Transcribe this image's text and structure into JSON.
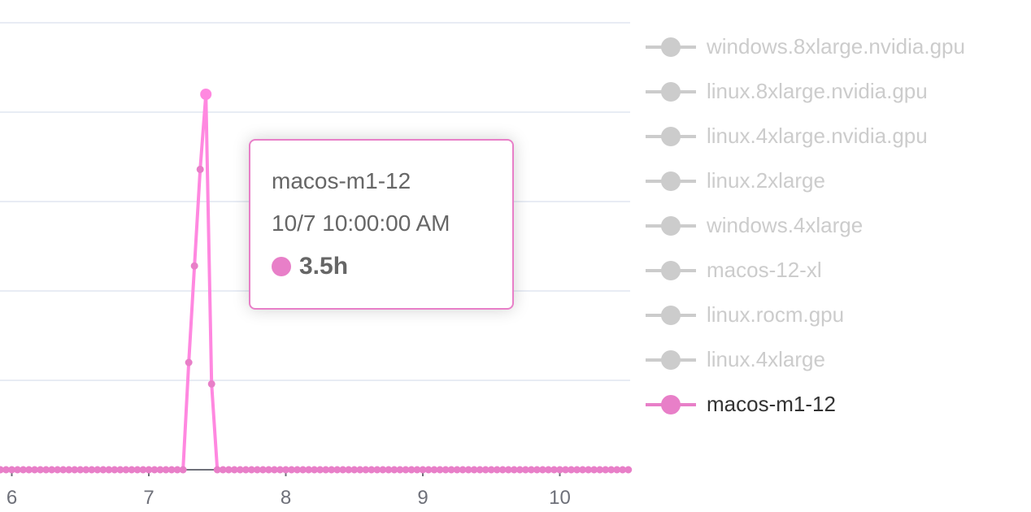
{
  "chart_data": {
    "type": "line",
    "x_axis": {
      "type": "time",
      "tick_labels": [
        "6",
        "7",
        "8",
        "9",
        "10"
      ],
      "x_start": "10/5 22:00",
      "x_step_hours": 1
    },
    "y_axis": {
      "unit": "h",
      "grid": true,
      "tick_labels_visible": false
    },
    "series": [
      {
        "name": "macos-m1-12",
        "color": "#e87fc8",
        "line_color": "#ff88e0",
        "visible": true,
        "values": [
          0,
          0,
          0,
          0,
          0,
          0,
          0,
          0,
          0,
          0,
          0,
          0,
          0,
          0,
          0,
          0,
          0,
          0,
          0,
          0,
          0,
          0,
          0,
          0,
          0,
          0,
          0,
          0,
          0,
          0,
          0,
          0,
          0,
          1.0,
          1.9,
          2.8,
          3.5,
          0.8,
          0,
          0,
          0,
          0,
          0,
          0,
          0,
          0,
          0,
          0,
          0,
          0,
          0,
          0,
          0,
          0,
          0,
          0,
          0,
          0,
          0,
          0,
          0,
          0,
          0,
          0,
          0,
          0,
          0,
          0,
          0,
          0,
          0,
          0,
          0,
          0,
          0,
          0,
          0,
          0,
          0,
          0,
          0,
          0,
          0,
          0,
          0,
          0,
          0,
          0,
          0,
          0,
          0,
          0,
          0,
          0,
          0,
          0,
          0,
          0,
          0,
          0,
          0,
          0,
          0,
          0,
          0,
          0,
          0,
          0,
          0,
          0,
          0
        ]
      }
    ],
    "legend": {
      "placement": "right",
      "items": [
        {
          "name": "windows.8xlarge.nvidia.gpu",
          "active": false
        },
        {
          "name": "linux.8xlarge.nvidia.gpu",
          "active": false
        },
        {
          "name": "linux.4xlarge.nvidia.gpu",
          "active": false
        },
        {
          "name": "linux.2xlarge",
          "active": false
        },
        {
          "name": "windows.4xlarge",
          "active": false
        },
        {
          "name": "macos-12-xl",
          "active": false
        },
        {
          "name": "linux.rocm.gpu",
          "active": false
        },
        {
          "name": "linux.4xlarge",
          "active": false
        },
        {
          "name": "macos-m1-12",
          "active": true
        }
      ],
      "inactive_color": "#cccccc",
      "active_text_color": "#333333"
    },
    "tooltip": {
      "series": "macos-m1-12",
      "time": "10/7 10:00:00 AM",
      "value": "3.5h",
      "highlight_index": 36
    }
  }
}
